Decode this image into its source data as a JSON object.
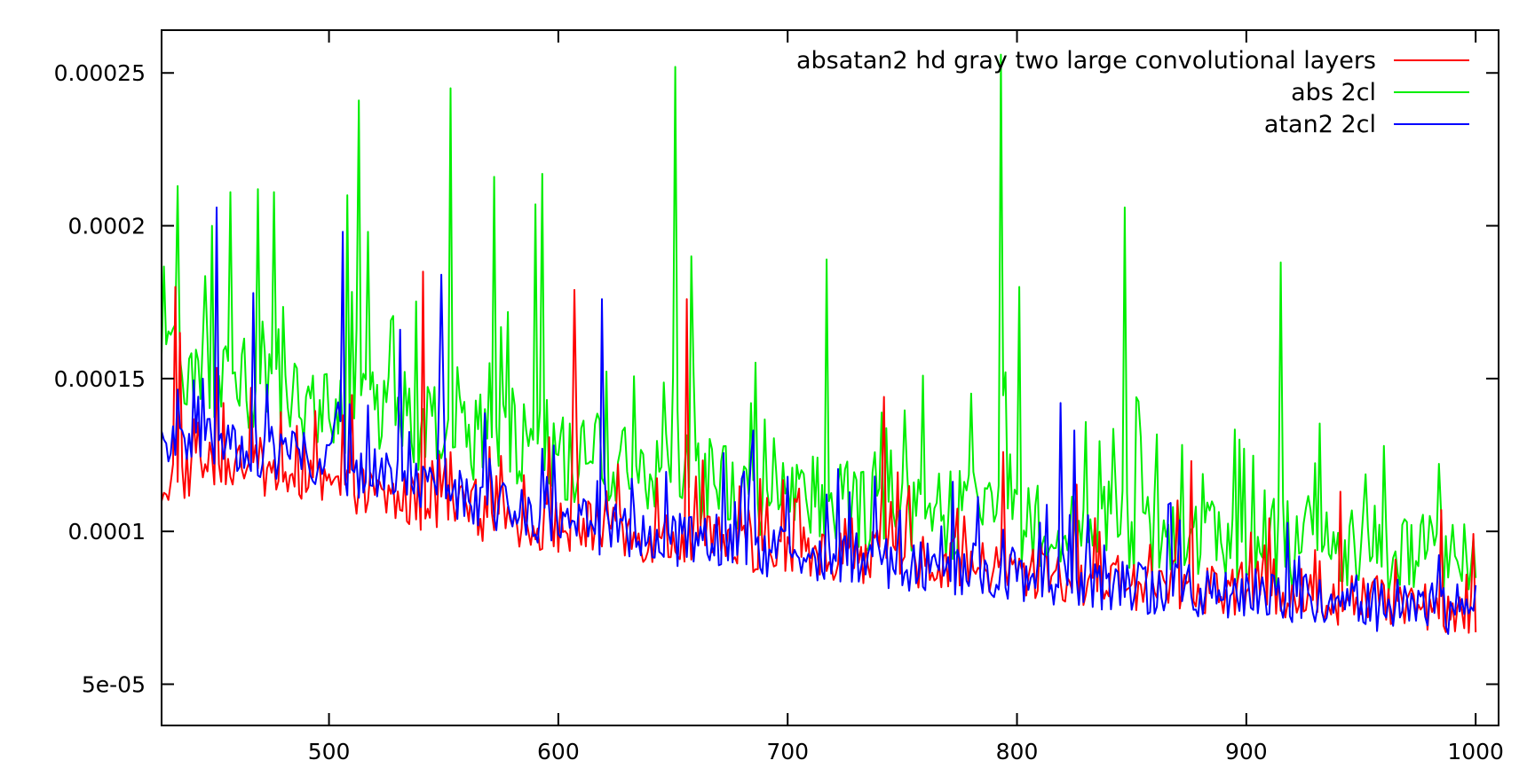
{
  "chart_data": {
    "type": "line",
    "title": "",
    "xlabel": "",
    "ylabel": "",
    "xlim": [
      427,
      1010
    ],
    "ylim": [
      3.65e-05,
      0.000264
    ],
    "x_ticks": [
      500,
      600,
      700,
      800,
      900,
      1000
    ],
    "y_ticks": [
      5e-05,
      0.0001,
      0.00015,
      0.0002,
      0.00025
    ],
    "x_tick_labels": [
      "500",
      "600",
      "700",
      "800",
      "900",
      "1000"
    ],
    "y_tick_labels": [
      "5e-05",
      "0.0001",
      "0.00015",
      "0.0002",
      "0.00025"
    ],
    "grid": false,
    "legend_position": "top-right",
    "x_range": [
      427,
      1000
    ],
    "series": [
      {
        "name": "absatan2 hd gray two large convolutional layers",
        "color": "#ff0000",
        "anchors": [
          [
            427,
            0.000115
          ],
          [
            450,
            0.000123
          ],
          [
            500,
            0.000114
          ],
          [
            550,
            0.000108
          ],
          [
            600,
            0.000101
          ],
          [
            650,
            9.75e-05
          ],
          [
            700,
            9.35e-05
          ],
          [
            750,
            9.1e-05
          ],
          [
            800,
            8.65e-05
          ],
          [
            850,
            8.3e-05
          ],
          [
            900,
            8.1e-05
          ],
          [
            950,
            7.75e-05
          ],
          [
            1000,
            7.5e-05
          ]
        ],
        "noise_amp": 1.6e-05,
        "spikes": [
          [
            433,
            0.00018
          ],
          [
            435,
            0.000165
          ],
          [
            466,
            0.000147
          ],
          [
            506,
            0.000138
          ],
          [
            541,
            0.000185
          ],
          [
            607,
            0.000179
          ],
          [
            656,
            0.000176
          ],
          [
            742,
            0.000144
          ],
          [
            794,
            0.000126
          ],
          [
            876,
            0.000123
          ],
          [
            941,
            0.000113
          ],
          [
            985,
            0.000107
          ]
        ]
      },
      {
        "name": "abs 2cl",
        "color": "#00ee00",
        "anchors": [
          [
            427,
            0.000158
          ],
          [
            450,
            0.000152
          ],
          [
            500,
            0.00014
          ],
          [
            550,
            0.000133
          ],
          [
            600,
            0.000125
          ],
          [
            650,
            0.000118
          ],
          [
            700,
            0.000111
          ],
          [
            750,
            0.000107
          ],
          [
            800,
            0.000104
          ],
          [
            850,
            0.000101
          ],
          [
            900,
            9.75e-05
          ],
          [
            950,
            9.4e-05
          ],
          [
            1000,
            9.35e-05
          ]
        ],
        "noise_amp": 2.7e-05,
        "spikes": [
          [
            434,
            0.000213
          ],
          [
            449,
            0.0002
          ],
          [
            457,
            0.000211
          ],
          [
            469,
            0.000212
          ],
          [
            476,
            0.000211
          ],
          [
            508,
            0.00021
          ],
          [
            513,
            0.000241
          ],
          [
            517,
            0.000198
          ],
          [
            553,
            0.000245
          ],
          [
            572,
            0.000216
          ],
          [
            590,
            0.000207
          ],
          [
            593,
            0.000217
          ],
          [
            651,
            0.000252
          ],
          [
            658,
            0.00019
          ],
          [
            717,
            0.000189
          ],
          [
            793,
            0.000256
          ],
          [
            801,
            0.00018
          ],
          [
            847,
            0.000206
          ],
          [
            915,
            0.000188
          ]
        ]
      },
      {
        "name": "atan2 2cl",
        "color": "#0000ff",
        "anchors": [
          [
            427,
            0.000128
          ],
          [
            450,
            0.000129
          ],
          [
            500,
            0.000122
          ],
          [
            550,
            0.000113
          ],
          [
            600,
            0.000103
          ],
          [
            650,
            9.75e-05
          ],
          [
            700,
            9.3e-05
          ],
          [
            750,
            8.95e-05
          ],
          [
            800,
            8.6e-05
          ],
          [
            850,
            8.2e-05
          ],
          [
            900,
            7.95e-05
          ],
          [
            950,
            7.65e-05
          ],
          [
            1000,
            7.4e-05
          ]
        ],
        "noise_amp": 1.6e-05,
        "spikes": [
          [
            451,
            0.000206
          ],
          [
            467,
            0.000178
          ],
          [
            473,
            0.000148
          ],
          [
            506,
            0.000198
          ],
          [
            531,
            0.000166
          ],
          [
            549,
            0.000184
          ],
          [
            619,
            0.000176
          ],
          [
            685,
            0.000133
          ],
          [
            819,
            0.000142
          ],
          [
            825,
            0.000133
          ]
        ]
      }
    ]
  }
}
